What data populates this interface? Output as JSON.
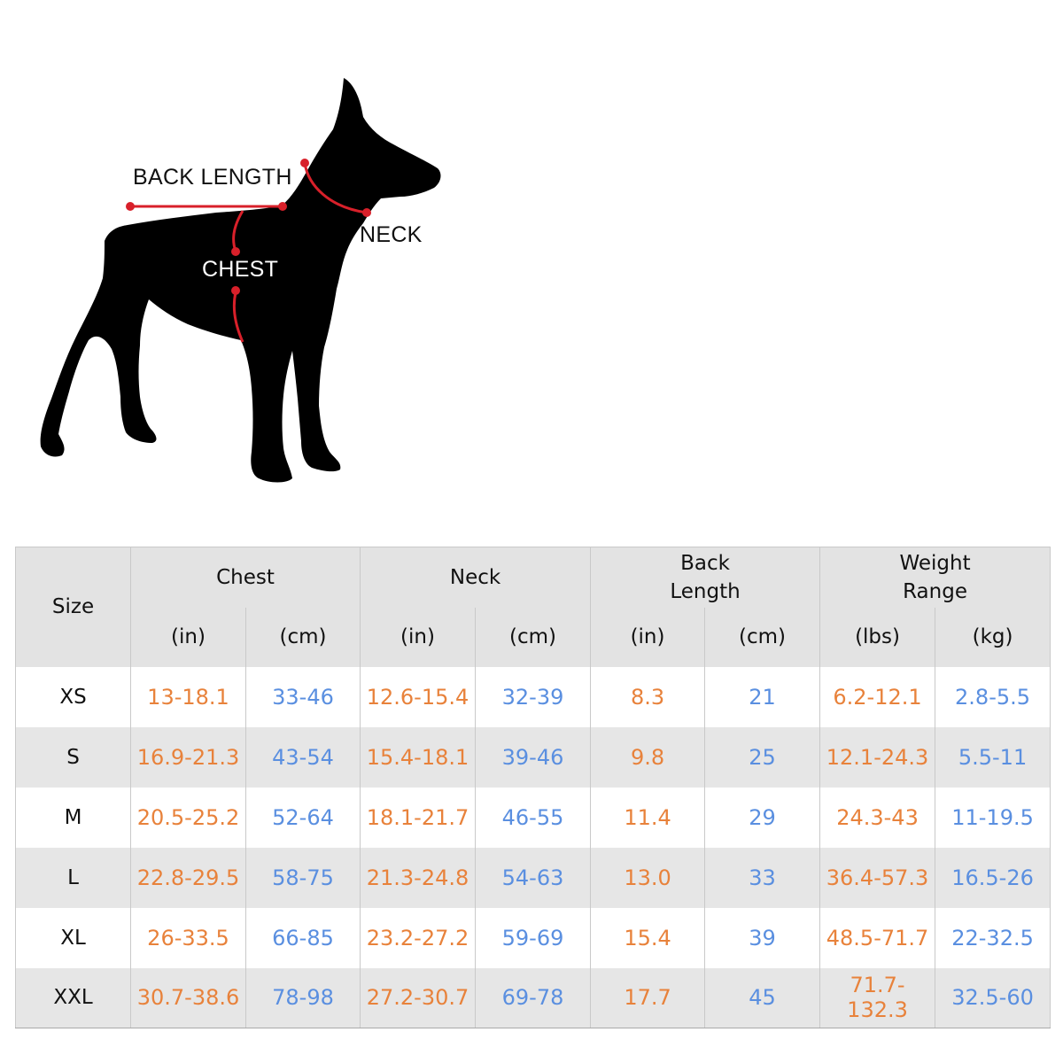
{
  "diagram": {
    "labels": {
      "back_length": "BACK LENGTH",
      "neck": "NECK",
      "chest": "CHEST"
    },
    "colors": {
      "silhouette": "#000000",
      "measure_line": "#d8202a"
    }
  },
  "table": {
    "size_header": "Size",
    "groups": [
      {
        "title": "Chest",
        "units": [
          "(in)",
          "(cm)"
        ]
      },
      {
        "title": "Neck",
        "units": [
          "(in)",
          "(cm)"
        ]
      },
      {
        "title": "Back\nLength",
        "units": [
          "(in)",
          "(cm)"
        ]
      },
      {
        "title": "Weight\nRange",
        "units": [
          "(lbs)",
          "(kg)"
        ]
      }
    ],
    "rows": [
      {
        "size": "XS",
        "values": [
          "13-18.1",
          "33-46",
          "12.6-15.4",
          "32-39",
          "8.3",
          "21",
          "6.2-12.1",
          "2.8-5.5"
        ]
      },
      {
        "size": "S",
        "values": [
          "16.9-21.3",
          "43-54",
          "15.4-18.1",
          "39-46",
          "9.8",
          "25",
          "12.1-24.3",
          "5.5-11"
        ]
      },
      {
        "size": "M",
        "values": [
          "20.5-25.2",
          "52-64",
          "18.1-21.7",
          "46-55",
          "11.4",
          "29",
          "24.3-43",
          "11-19.5"
        ]
      },
      {
        "size": "L",
        "values": [
          "22.8-29.5",
          "58-75",
          "21.3-24.8",
          "54-63",
          "13.0",
          "33",
          "36.4-57.3",
          "16.5-26"
        ]
      },
      {
        "size": "XL",
        "values": [
          "26-33.5",
          "66-85",
          "23.2-27.2",
          "59-69",
          "15.4",
          "39",
          "48.5-71.7",
          "22-32.5"
        ]
      },
      {
        "size": "XXL",
        "values": [
          "30.7-38.6",
          "78-98",
          "27.2-30.7",
          "69-78",
          "17.7",
          "45",
          "71.7-132.3",
          "32.5-60"
        ]
      }
    ],
    "colors": {
      "imperial": "#e8823b",
      "metric": "#5a8fe0",
      "header_bg": "#e3e3e3",
      "stripe_bg": "#e6e6e6"
    }
  }
}
